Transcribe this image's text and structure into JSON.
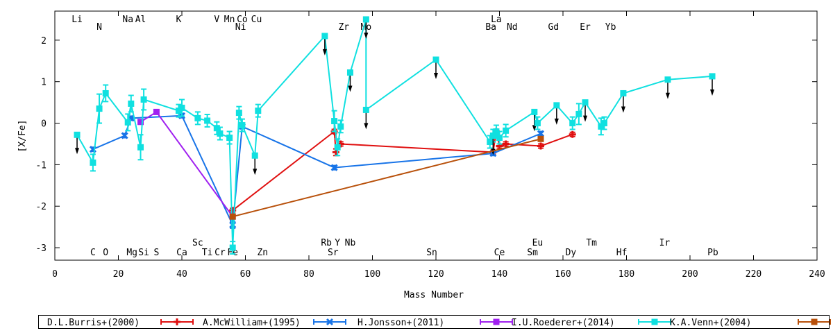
{
  "chart_data": {
    "type": "line",
    "xlabel": "Mass Number",
    "ylabel": "[X/Fe]",
    "xlim": [
      0,
      240
    ],
    "ylim": [
      -3.3,
      2.7
    ],
    "xticks": [
      0,
      20,
      40,
      60,
      80,
      100,
      120,
      140,
      160,
      180,
      200,
      220,
      240
    ],
    "yticks": [
      -3,
      -2,
      -1,
      0,
      1,
      2
    ],
    "grid": false,
    "legend_position": "bottom",
    "element_labels_top": [
      {
        "label": "Li",
        "mass": 7,
        "row": 0
      },
      {
        "label": "N",
        "mass": 14,
        "row": 1
      },
      {
        "label": "Na",
        "mass": 23,
        "row": 0
      },
      {
        "label": "Al",
        "mass": 27,
        "row": 0
      },
      {
        "label": "K",
        "mass": 39,
        "row": 0
      },
      {
        "label": "V",
        "mass": 51,
        "row": 0
      },
      {
        "label": "Mn",
        "mass": 55,
        "row": 0
      },
      {
        "label": "Ni",
        "mass": 58.5,
        "row": 1
      },
      {
        "label": "Co",
        "mass": 59,
        "row": 0
      },
      {
        "label": "Cu",
        "mass": 63.5,
        "row": 0
      },
      {
        "label": "Zr",
        "mass": 91,
        "row": 1
      },
      {
        "label": "Mo",
        "mass": 98,
        "row": 1
      },
      {
        "label": "La",
        "mass": 139,
        "row": 0
      },
      {
        "label": "Ba",
        "mass": 137.3,
        "row": 1
      },
      {
        "label": "Nd",
        "mass": 144,
        "row": 1
      },
      {
        "label": "Gd",
        "mass": 157,
        "row": 1
      },
      {
        "label": "Er",
        "mass": 167,
        "row": 1
      },
      {
        "label": "Yb",
        "mass": 175,
        "row": 1
      }
    ],
    "element_labels_bottom": [
      {
        "label": "Sc",
        "mass": 45,
        "row": 0
      },
      {
        "label": "Rb",
        "mass": 85.5,
        "row": 0
      },
      {
        "label": "Y",
        "mass": 89,
        "row": 0
      },
      {
        "label": "Nb",
        "mass": 93,
        "row": 0
      },
      {
        "label": "Eu",
        "mass": 152,
        "row": 0
      },
      {
        "label": "Tm",
        "mass": 169,
        "row": 0
      },
      {
        "label": "Ir",
        "mass": 192,
        "row": 0
      },
      {
        "label": "C",
        "mass": 12,
        "row": 1
      },
      {
        "label": "O",
        "mass": 16,
        "row": 1
      },
      {
        "label": "Mg",
        "mass": 24.3,
        "row": 1
      },
      {
        "label": "Si",
        "mass": 28,
        "row": 1
      },
      {
        "label": "S",
        "mass": 32,
        "row": 1
      },
      {
        "label": "Ca",
        "mass": 40,
        "row": 1
      },
      {
        "label": "Ti",
        "mass": 48,
        "row": 1
      },
      {
        "label": "Cr",
        "mass": 52,
        "row": 1
      },
      {
        "label": "Fe",
        "mass": 56,
        "row": 1
      },
      {
        "label": "Zn",
        "mass": 65.4,
        "row": 1
      },
      {
        "label": "Sr",
        "mass": 87.6,
        "row": 1
      },
      {
        "label": "Sn",
        "mass": 118.7,
        "row": 1
      },
      {
        "label": "Ce",
        "mass": 140,
        "row": 1
      },
      {
        "label": "Sm",
        "mass": 150.4,
        "row": 1
      },
      {
        "label": "Dy",
        "mass": 162.5,
        "row": 1
      },
      {
        "label": "Hf",
        "mass": 178.5,
        "row": 1
      },
      {
        "label": "Pb",
        "mass": 207.2,
        "row": 1
      }
    ],
    "series": [
      {
        "name": "D.L.Burris+(2000)",
        "color": "#e01010",
        "marker": "plus",
        "points": [
          {
            "x": 56,
            "y": -2.1,
            "err": 0.05
          },
          {
            "x": 88,
            "y": -0.2,
            "err": 0.05
          },
          {
            "x": 88.5,
            "y": -0.7,
            "err": 0.08
          },
          {
            "x": 90,
            "y": -0.5,
            "err": 0.05
          },
          {
            "x": 138,
            "y": -0.7,
            "err": 0.05
          },
          {
            "x": 139,
            "y": -0.2,
            "err": 0.05
          },
          {
            "x": 140,
            "y": -0.55,
            "err": 0.05
          },
          {
            "x": 142,
            "y": -0.5,
            "err": 0.05
          },
          {
            "x": 153,
            "y": -0.55,
            "err": 0.05
          },
          {
            "x": 163,
            "y": -0.27,
            "err": 0.05
          }
        ]
      },
      {
        "name": "A.McWilliam+(1995)",
        "color": "#1874e8",
        "marker": "x",
        "points": [
          {
            "x": 12,
            "y": -0.63,
            "err": 0.05
          },
          {
            "x": 22,
            "y": -0.3,
            "err": 0.05
          },
          {
            "x": 24,
            "y": 0.12,
            "err": 0.05
          },
          {
            "x": 40,
            "y": 0.18,
            "err": 0.05
          },
          {
            "x": 56,
            "y": -2.45,
            "err": 0.08
          },
          {
            "x": 59,
            "y": -0.08,
            "err": 0.05
          },
          {
            "x": 88,
            "y": -1.07,
            "err": 0.05
          },
          {
            "x": 138,
            "y": -0.73,
            "err": 0.05
          },
          {
            "x": 153,
            "y": -0.25,
            "err": 0.05
          }
        ]
      },
      {
        "name": "H.Jonsson+(2011)",
        "color": "#a020f0",
        "marker": "square",
        "points": [
          {
            "x": 27,
            "y": 0.03,
            "err": 0.05
          },
          {
            "x": 32,
            "y": 0.27,
            "err": 0.05
          },
          {
            "x": 56,
            "y": -2.25,
            "err": 0.05
          }
        ]
      },
      {
        "name": "I.U.Roederer+(2014)",
        "color": "#10e0e0",
        "marker": "square",
        "points": [
          {
            "x": 7,
            "y": -0.28,
            "err": 0.05,
            "upper": true
          },
          {
            "x": 12,
            "y": -0.95,
            "err": 0.2
          },
          {
            "x": 14,
            "y": 0.35,
            "err": 0.35
          },
          {
            "x": 16,
            "y": 0.72,
            "err": 0.2
          },
          {
            "x": 23,
            "y": 0.02,
            "err": 0.2
          },
          {
            "x": 24,
            "y": 0.47,
            "err": 0.2
          },
          {
            "x": 27,
            "y": -0.58,
            "err": 0.3
          },
          {
            "x": 28,
            "y": 0.57,
            "err": 0.25
          },
          {
            "x": 39,
            "y": 0.3,
            "err": 0.15
          },
          {
            "x": 40,
            "y": 0.37,
            "err": 0.2
          },
          {
            "x": 45,
            "y": 0.12,
            "err": 0.15
          },
          {
            "x": 48,
            "y": 0.06,
            "err": 0.15
          },
          {
            "x": 51,
            "y": -0.12,
            "err": 0.15
          },
          {
            "x": 52,
            "y": -0.25,
            "err": 0.15
          },
          {
            "x": 55,
            "y": -0.35,
            "err": 0.15
          },
          {
            "x": 56,
            "y": -3.0,
            "err": 0.15
          },
          {
            "x": 58,
            "y": 0.25,
            "err": 0.15
          },
          {
            "x": 59,
            "y": -0.05,
            "err": 0.15
          },
          {
            "x": 63,
            "y": -0.78,
            "err": 0.05,
            "upper": true
          },
          {
            "x": 64,
            "y": 0.3,
            "err": 0.15
          },
          {
            "x": 85,
            "y": 2.1,
            "err": 0.05,
            "upper": true
          },
          {
            "x": 88,
            "y": 0.05,
            "err": 0.25
          },
          {
            "x": 89,
            "y": -0.58,
            "err": 0.2
          },
          {
            "x": 90,
            "y": -0.08,
            "err": 0.15
          },
          {
            "x": 93,
            "y": 1.22,
            "err": 0.05,
            "upper": true
          },
          {
            "x": 98,
            "y": 2.5,
            "err": 0.05,
            "upper": true
          },
          {
            "x": 98,
            "y": 0.32,
            "err": 0.05,
            "upper": true
          },
          {
            "x": 120,
            "y": 1.53,
            "err": 0.05,
            "upper": true
          },
          {
            "x": 137,
            "y": -0.45,
            "err": 0.15
          },
          {
            "x": 138,
            "y": -0.3,
            "err": 0.15,
            "upper": true
          },
          {
            "x": 139,
            "y": -0.2,
            "err": 0.15
          },
          {
            "x": 140,
            "y": -0.35,
            "err": 0.15
          },
          {
            "x": 142,
            "y": -0.18,
            "err": 0.15
          },
          {
            "x": 151,
            "y": 0.27,
            "err": 0.05,
            "upper": true
          },
          {
            "x": 152,
            "y": 0.0,
            "err": 0.15
          },
          {
            "x": 158,
            "y": 0.43,
            "err": 0.05,
            "upper": true
          },
          {
            "x": 163,
            "y": 0.0,
            "err": 0.15
          },
          {
            "x": 165,
            "y": 0.22,
            "err": 0.25
          },
          {
            "x": 167,
            "y": 0.5,
            "err": 0.05,
            "upper": true
          },
          {
            "x": 172,
            "y": -0.08,
            "err": 0.2
          },
          {
            "x": 173,
            "y": 0.0,
            "err": 0.15
          },
          {
            "x": 179,
            "y": 0.72,
            "err": 0.05,
            "upper": true
          },
          {
            "x": 193,
            "y": 1.05,
            "err": 0.05,
            "upper": true
          },
          {
            "x": 207,
            "y": 1.13,
            "err": 0.05,
            "upper": true
          }
        ]
      },
      {
        "name": "K.A.Venn+(2004)",
        "color": "#b8500a",
        "marker": "square",
        "points": [
          {
            "x": 56,
            "y": -2.25,
            "err": 0.05
          },
          {
            "x": 153,
            "y": -0.38,
            "err": 0.05
          }
        ]
      }
    ]
  }
}
